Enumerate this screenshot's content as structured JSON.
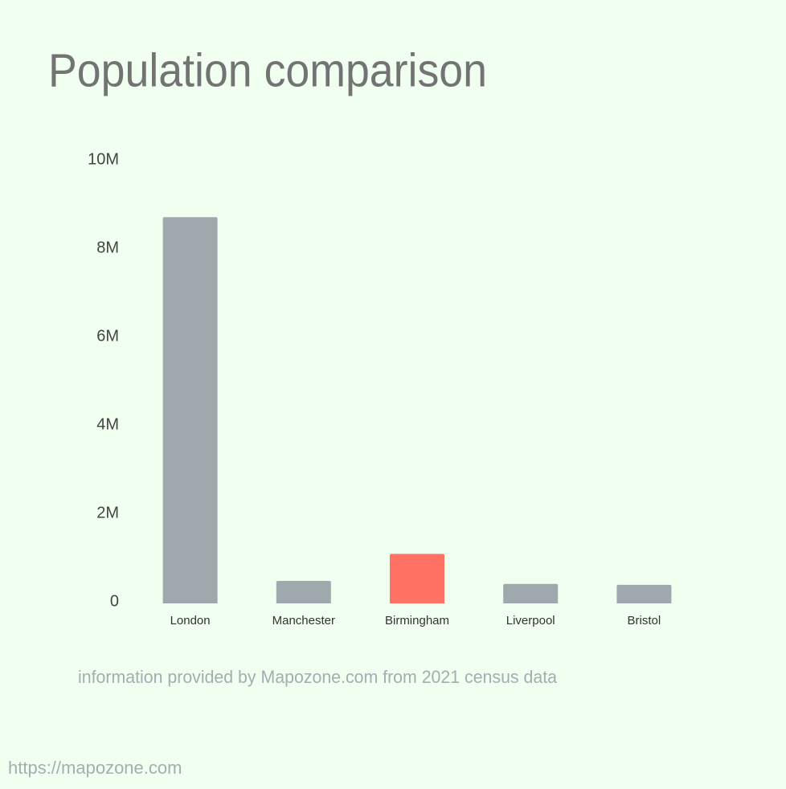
{
  "chart_data": {
    "type": "bar",
    "title": "Population comparison",
    "categories": [
      "London",
      "Manchester",
      "Birmingham",
      "Liverpool",
      "Bristol"
    ],
    "values": [
      8740000,
      510000,
      1120000,
      440000,
      420000
    ],
    "colors": [
      "#9fa8ad",
      "#9fa8ad",
      "#ff7163",
      "#9fa8ad",
      "#9fa8ad"
    ],
    "ylim": [
      0,
      10000000
    ],
    "yticks": [
      0,
      {
        "value": 2000000,
        "label": "2M"
      },
      {
        "value": 4000000,
        "label": "4M"
      },
      {
        "value": 6000000,
        "label": "6M"
      },
      {
        "value": 8000000,
        "label": "8M"
      },
      {
        "value": 10000000,
        "label": "10M"
      }
    ],
    "grid": false,
    "note": "information provided by Mapozone.com from 2021 census data"
  },
  "footer": {
    "url": "https://mapozone.com"
  }
}
